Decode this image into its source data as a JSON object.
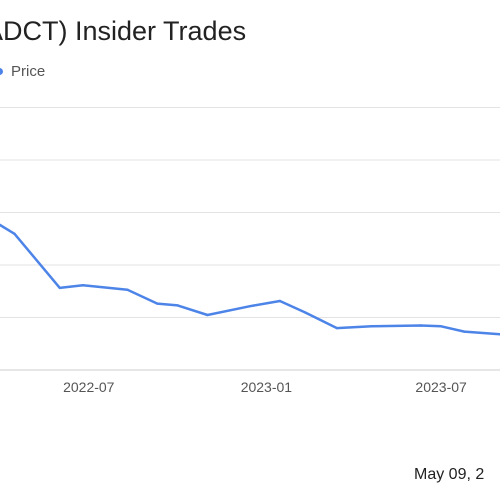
{
  "chart_data": {
    "type": "line",
    "title": "A (ADCT) Insider Trades",
    "legend": {
      "entries": [
        "Price"
      ],
      "placement": "top-left"
    },
    "series": [
      {
        "name": "Price",
        "color": "#4d84e8",
        "points": [
          [
            "2022-03-31",
            8.3
          ],
          [
            "2022-04-15",
            7.8
          ],
          [
            "2022-06-01",
            4.7
          ],
          [
            "2022-06-25",
            4.85
          ],
          [
            "2022-08-10",
            4.6
          ],
          [
            "2022-09-10",
            3.8
          ],
          [
            "2022-10-01",
            3.7
          ],
          [
            "2022-11-01",
            3.15
          ],
          [
            "2022-12-15",
            3.65
          ],
          [
            "2023-01-15",
            3.95
          ],
          [
            "2023-02-10",
            3.3
          ],
          [
            "2023-03-15",
            2.4
          ],
          [
            "2023-04-20",
            2.5
          ],
          [
            "2023-06-10",
            2.55
          ],
          [
            "2023-07-01",
            2.5
          ],
          [
            "2023-07-25",
            2.2
          ],
          [
            "2023-08-31",
            2.05
          ]
        ]
      }
    ],
    "x_ticks": [
      "2022-07",
      "2023-01",
      "2023-07"
    ],
    "x_range": [
      "2022-03-31",
      "2023-08-31"
    ],
    "y_range": [
      0,
      15
    ],
    "grid": true
  },
  "footer": {
    "date_text": "May 09, 2"
  }
}
